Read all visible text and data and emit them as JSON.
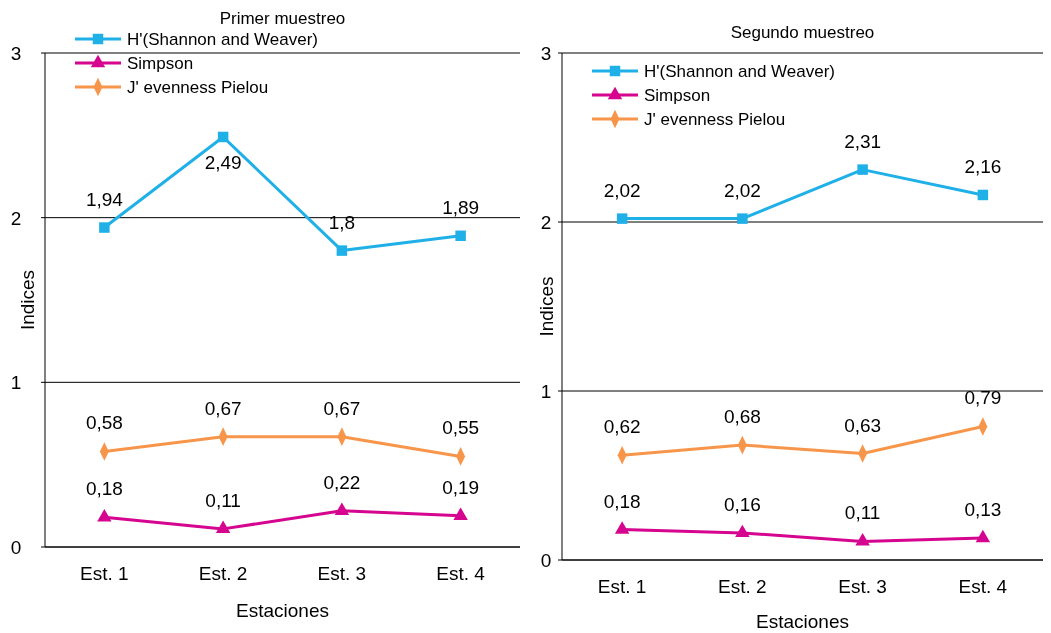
{
  "chart_data": [
    {
      "type": "line",
      "title": "Primer muestreo",
      "xlabel": "Estaciones",
      "ylabel": "Indices",
      "categories": [
        "Est. 1",
        "Est. 2",
        "Est. 3",
        "Est. 4"
      ],
      "ylim": [
        0,
        3
      ],
      "yticks": [
        0,
        1,
        2,
        3
      ],
      "grid": "y",
      "legend": "top left",
      "series": [
        {
          "name": "H'(Shannon and Weaver)",
          "color": "#1fb0e8",
          "marker": "square",
          "values": [
            1.94,
            2.49,
            1.8,
            1.89
          ],
          "value_labels": [
            "1,94",
            "2,49",
            "1,8",
            "1,89"
          ]
        },
        {
          "name": "Simpson",
          "color": "#d6058f",
          "marker": "triangle",
          "values": [
            0.18,
            0.11,
            0.22,
            0.19
          ],
          "value_labels": [
            "0,18",
            "0,11",
            "0,22",
            "0,19"
          ]
        },
        {
          "name": "J' evenness Pielou",
          "color": "#f7964a",
          "marker": "diamond",
          "values": [
            0.58,
            0.67,
            0.67,
            0.55
          ],
          "value_labels": [
            "0,58",
            "0,67",
            "0,67",
            "0,55"
          ]
        }
      ]
    },
    {
      "type": "line",
      "title": "Segundo muestreo",
      "xlabel": "Estaciones",
      "ylabel": "Indices",
      "categories": [
        "Est. 1",
        "Est. 2",
        "Est. 3",
        "Est. 4"
      ],
      "ylim": [
        0,
        3
      ],
      "yticks": [
        0,
        1,
        2,
        3
      ],
      "grid": "y",
      "legend": "top left",
      "series": [
        {
          "name": "H'(Shannon and Weaver)",
          "color": "#1fb0e8",
          "marker": "square",
          "values": [
            2.02,
            2.02,
            2.31,
            2.16
          ],
          "value_labels": [
            "2,02",
            "2,02",
            "2,31",
            "2,16"
          ]
        },
        {
          "name": "Simpson",
          "color": "#d6058f",
          "marker": "triangle",
          "values": [
            0.18,
            0.16,
            0.11,
            0.13
          ],
          "value_labels": [
            "0,18",
            "0,16",
            "0,11",
            "0,13"
          ]
        },
        {
          "name": "J' evenness Pielou",
          "color": "#f7964a",
          "marker": "diamond",
          "values": [
            0.62,
            0.68,
            0.63,
            0.79
          ],
          "value_labels": [
            "0,62",
            "0,68",
            "0,63",
            "0,79"
          ]
        }
      ]
    }
  ]
}
